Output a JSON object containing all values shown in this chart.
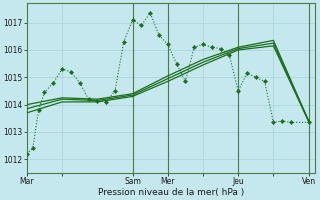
{
  "background_color": "#c5e8ee",
  "grid_color": "#b0d8e0",
  "line_color": "#1a6e1a",
  "vline_color": "#4a7a4a",
  "title": "Pression niveau de la mer( hPa )",
  "ylim": [
    1011.5,
    1017.7
  ],
  "yticks": [
    1012,
    1013,
    1014,
    1015,
    1016,
    1017
  ],
  "xtick_labels": [
    "Mar",
    "",
    "Sam",
    "Mer",
    "",
    "Jeu",
    "",
    "Ven"
  ],
  "xtick_positions": [
    0,
    48,
    144,
    192,
    240,
    288,
    336,
    384
  ],
  "xlim": [
    0,
    392
  ],
  "series_main": {
    "x": [
      0,
      8,
      16,
      24,
      36,
      48,
      60,
      72,
      84,
      96,
      108,
      120,
      132,
      144,
      156,
      168,
      180,
      192,
      204,
      216,
      228,
      240,
      252,
      264,
      276,
      288,
      300,
      312,
      324,
      336,
      348,
      360,
      384
    ],
    "y": [
      1012.2,
      1012.4,
      1013.8,
      1014.45,
      1014.8,
      1015.3,
      1015.2,
      1014.8,
      1014.2,
      1014.15,
      1014.1,
      1014.5,
      1016.3,
      1017.1,
      1016.9,
      1017.35,
      1016.55,
      1016.2,
      1015.5,
      1014.85,
      1016.1,
      1016.2,
      1016.1,
      1016.05,
      1015.8,
      1014.5,
      1015.15,
      1015.0,
      1014.85,
      1013.35,
      1013.4,
      1013.35,
      1013.35
    ],
    "linewidth": 1.0,
    "markersize": 2.2
  },
  "series_smooth": [
    {
      "x": [
        0,
        48,
        96,
        144,
        192,
        240,
        288,
        336,
        384
      ],
      "y": [
        1014.0,
        1014.25,
        1014.2,
        1014.4,
        1015.05,
        1015.65,
        1016.1,
        1016.35,
        1013.4
      ]
    },
    {
      "x": [
        0,
        48,
        96,
        144,
        192,
        240,
        288,
        336,
        384
      ],
      "y": [
        1013.85,
        1014.2,
        1014.15,
        1014.35,
        1014.95,
        1015.55,
        1016.05,
        1016.25,
        1013.4
      ]
    },
    {
      "x": [
        0,
        48,
        96,
        144,
        192,
        240,
        288,
        336,
        384
      ],
      "y": [
        1013.7,
        1014.1,
        1014.1,
        1014.3,
        1014.85,
        1015.45,
        1016.0,
        1016.15,
        1013.38
      ]
    }
  ],
  "vlines": [
    144,
    192,
    288,
    384
  ],
  "ylabel_fontsize": 5.5,
  "xlabel_fontsize": 6.5,
  "tick_fontsize": 5.5
}
